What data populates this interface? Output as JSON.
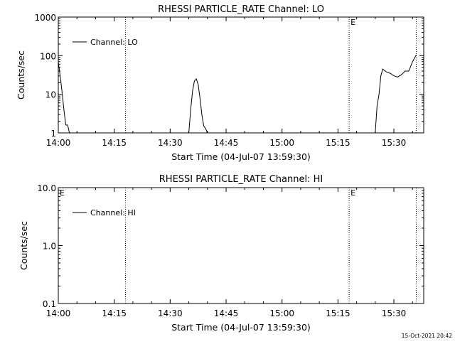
{
  "footer": {
    "timestamp": "15-Oct-2021 20:42"
  },
  "chart_data": [
    {
      "type": "line",
      "title": "RHESSI PARTICLE_RATE Channel: LO",
      "xlabel": "Start Time (04-Jul-07 13:59:30)",
      "ylabel": "Counts/sec",
      "xlim": [
        "14:00",
        "15:38"
      ],
      "ylim": [
        1,
        1000
      ],
      "yscale": "log",
      "x_ticks": [
        "14:00",
        "14:15",
        "14:30",
        "14:45",
        "15:00",
        "15:15",
        "15:30"
      ],
      "y_ticks": [
        "1",
        "10",
        "100",
        "1000"
      ],
      "vlines": [
        "14:18",
        "15:18",
        "15:36"
      ],
      "annotations": [
        {
          "text": "E",
          "x": "15:18"
        }
      ],
      "legend": {
        "position": "top-left",
        "label": "Channel: LO"
      },
      "series": [
        {
          "name": "Channel: LO",
          "segments": [
            [
              [
                "14:00",
                80
              ],
              [
                "14:00",
                70
              ],
              [
                "14:00.5",
                30
              ],
              [
                "14:01",
                12
              ],
              [
                "14:01.5",
                4
              ],
              [
                "14:02",
                1.6
              ],
              [
                "14:02.5",
                1.6
              ],
              [
                "14:03",
                1
              ]
            ],
            [
              [
                "14:35",
                1
              ],
              [
                "14:35.5",
                4
              ],
              [
                "14:36",
                12
              ],
              [
                "14:36.5",
                22
              ],
              [
                "14:37",
                25
              ],
              [
                "14:37.5",
                18
              ],
              [
                "14:38",
                8
              ],
              [
                "14:38.5",
                3
              ],
              [
                "14:39",
                1.5
              ],
              [
                "14:39.5",
                1.3
              ],
              [
                "14:40",
                1
              ]
            ],
            [
              [
                "15:25",
                1
              ],
              [
                "15:25.5",
                5
              ],
              [
                "15:26",
                10
              ],
              [
                "15:26.5",
                30
              ],
              [
                "15:27",
                45
              ],
              [
                "15:28",
                38
              ],
              [
                "15:29",
                35
              ],
              [
                "15:30",
                30
              ],
              [
                "15:31",
                28
              ],
              [
                "15:32",
                32
              ],
              [
                "15:33",
                40
              ],
              [
                "15:34",
                40
              ],
              [
                "15:35",
                70
              ],
              [
                "15:36",
                105
              ]
            ]
          ]
        }
      ]
    },
    {
      "type": "line",
      "title": "RHESSI PARTICLE_RATE Channel: HI",
      "xlabel": "Start Time (04-Jul-07 13:59:30)",
      "ylabel": "Counts/sec",
      "xlim": [
        "14:00",
        "15:38"
      ],
      "ylim": [
        0.1,
        10
      ],
      "yscale": "log",
      "x_ticks": [
        "14:00",
        "14:15",
        "14:30",
        "14:45",
        "15:00",
        "15:15",
        "15:30"
      ],
      "y_ticks": [
        "0.1",
        "1.0",
        "10.0"
      ],
      "vlines": [
        "14:18",
        "15:18",
        "15:36"
      ],
      "annotations": [
        {
          "text": "E",
          "x": "14:00"
        },
        {
          "text": "E",
          "x": "15:18"
        }
      ],
      "legend": {
        "position": "top-left",
        "label": "Channel: HI"
      },
      "series": [
        {
          "name": "Channel: HI",
          "segments": []
        }
      ]
    }
  ]
}
